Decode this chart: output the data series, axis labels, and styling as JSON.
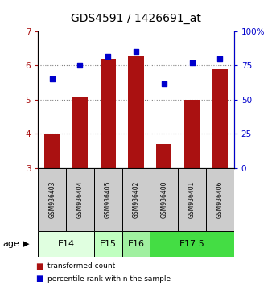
{
  "title": "GDS4591 / 1426691_at",
  "samples": [
    "GSM936403",
    "GSM936404",
    "GSM936405",
    "GSM936402",
    "GSM936400",
    "GSM936401",
    "GSM936406"
  ],
  "transformed_count": [
    4.0,
    5.1,
    6.2,
    6.3,
    3.7,
    5.0,
    5.9
  ],
  "percentile_rank": [
    65,
    75,
    82,
    85,
    62,
    77,
    80
  ],
  "bar_color": "#aa1111",
  "dot_color": "#0000cc",
  "ylim_left": [
    3,
    7
  ],
  "ylim_right": [
    0,
    100
  ],
  "yticks_left": [
    3,
    4,
    5,
    6,
    7
  ],
  "yticks_right": [
    0,
    25,
    50,
    75,
    100
  ],
  "yticklabels_right": [
    "0",
    "25",
    "50",
    "75",
    "100%"
  ],
  "age_groups": [
    {
      "label": "E14",
      "start": 0,
      "end": 2,
      "color": "#e0ffe0"
    },
    {
      "label": "E15",
      "start": 2,
      "end": 3,
      "color": "#c0ffc0"
    },
    {
      "label": "E16",
      "start": 3,
      "end": 4,
      "color": "#a0f0a0"
    },
    {
      "label": "E17.5",
      "start": 4,
      "end": 7,
      "color": "#44dd44"
    }
  ],
  "sample_box_color": "#cccccc",
  "legend_bar_label": "transformed count",
  "legend_dot_label": "percentile rank within the sample"
}
